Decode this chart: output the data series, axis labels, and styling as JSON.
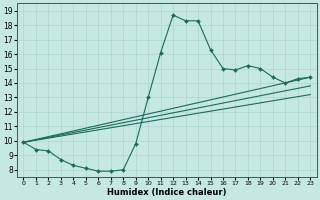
{
  "title": "",
  "xlabel": "Humidex (Indice chaleur)",
  "xlim": [
    -0.5,
    23.5
  ],
  "ylim": [
    7.5,
    19.5
  ],
  "xticks": [
    0,
    1,
    2,
    3,
    4,
    5,
    6,
    7,
    8,
    9,
    10,
    11,
    12,
    13,
    14,
    15,
    16,
    17,
    18,
    19,
    20,
    21,
    22,
    23
  ],
  "yticks": [
    8,
    9,
    10,
    11,
    12,
    13,
    14,
    15,
    16,
    17,
    18,
    19
  ],
  "bg_color": "#c6e8e2",
  "line_color": "#1a6b5a",
  "grid_color": "#b0d4ce",
  "line1_x": [
    0,
    1,
    2,
    3,
    4,
    5,
    6,
    7,
    8,
    9,
    10,
    11,
    12,
    13,
    14,
    15,
    16,
    17,
    18,
    19,
    20,
    21,
    22,
    23
  ],
  "line1_y": [
    9.9,
    9.4,
    9.3,
    8.7,
    8.3,
    8.1,
    7.9,
    7.9,
    8.0,
    9.8,
    13.0,
    16.1,
    18.7,
    18.3,
    18.3,
    16.3,
    15.0,
    14.9,
    15.2,
    15.0,
    14.4,
    14.0,
    14.3,
    14.4
  ],
  "line2_x": [
    0,
    23
  ],
  "line2_y": [
    9.9,
    14.4
  ],
  "line3_x": [
    0,
    23
  ],
  "line3_y": [
    9.9,
    13.8
  ],
  "line4_x": [
    0,
    23
  ],
  "line4_y": [
    9.9,
    13.2
  ],
  "marker": "D",
  "markersize": 2.0,
  "linewidth": 0.8
}
